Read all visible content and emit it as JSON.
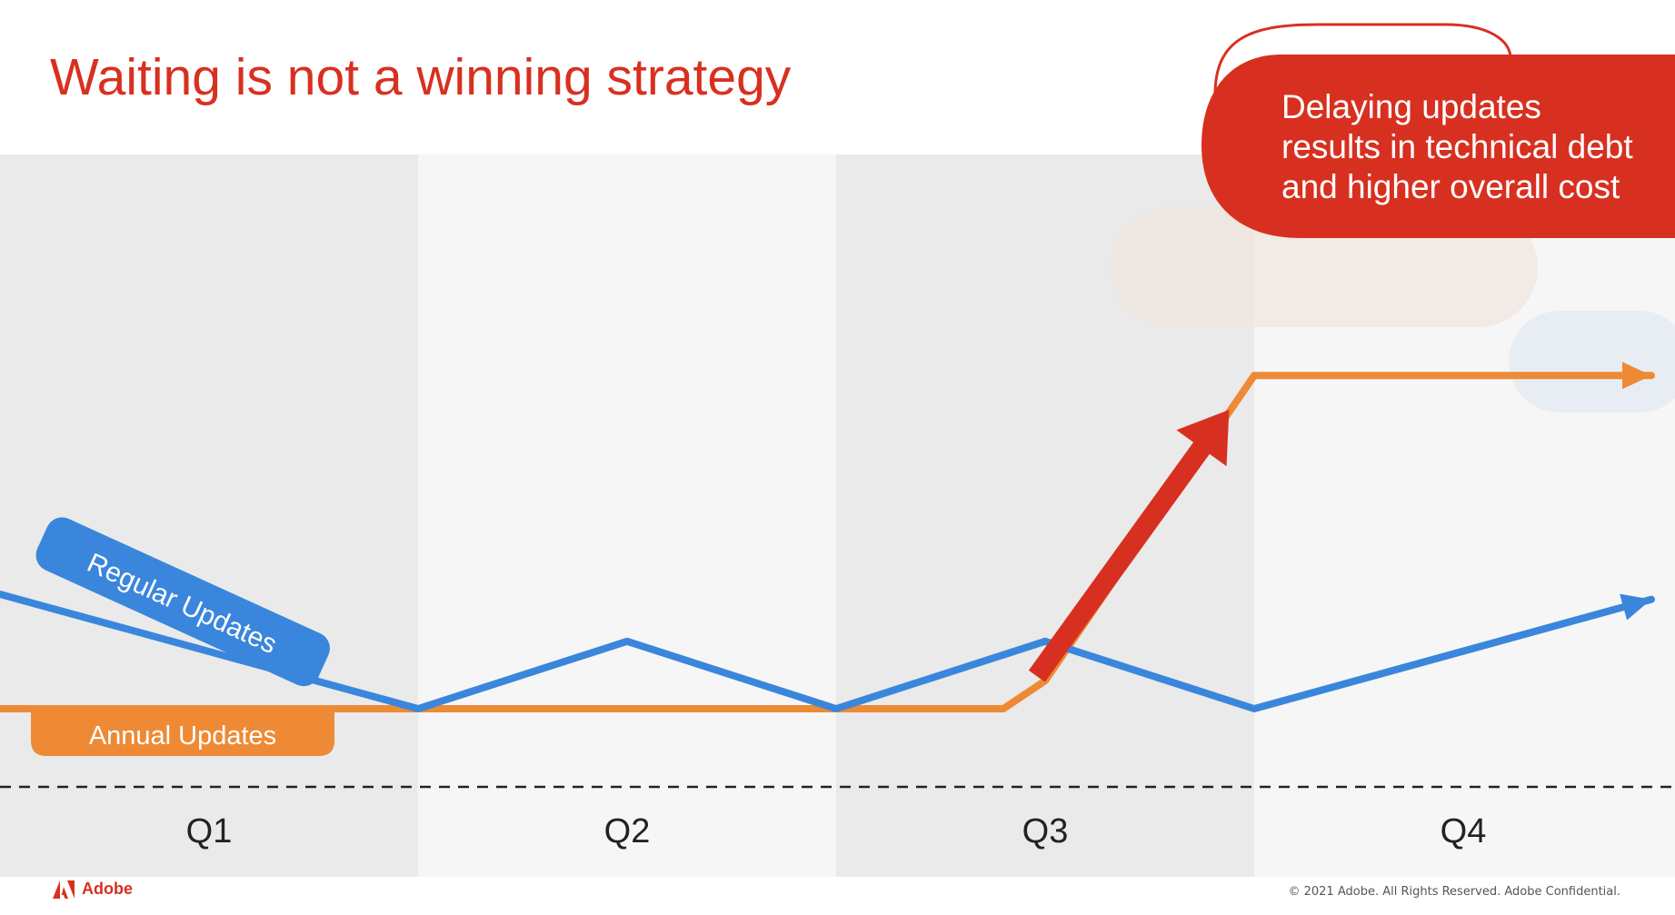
{
  "title": "Waiting is not a winning strategy",
  "callout": {
    "lines": [
      "Delaying updates",
      "results in technical debt",
      "and higher overall cost"
    ]
  },
  "chart_data": {
    "type": "line",
    "categories": [
      "Q1",
      "Q2",
      "Q3",
      "Q4"
    ],
    "series": [
      {
        "name": "Regular Updates",
        "color": "#3a86dc",
        "x": [
          0,
          1,
          1.5,
          2,
          2.5,
          3,
          3.95
        ],
        "y": [
          0.9,
          0,
          0.53,
          0,
          0.53,
          0,
          0.86
        ]
      },
      {
        "name": "Annual Updates",
        "color": "#ee8a35",
        "x": [
          0,
          2.4,
          2.5,
          2.5,
          3,
          3.95
        ],
        "y": [
          0,
          0,
          0.22,
          0.22,
          2.62,
          2.62
        ]
      }
    ],
    "colors": {
      "title": "#d83020",
      "callout": "#d83020",
      "arrow": "#d83020",
      "band_dark": "#eaeaea",
      "band_light": "#f6f6f6"
    },
    "icons": [
      "adobe-logo-icon"
    ]
  },
  "footer": {
    "brand": "Adobe",
    "copyright": "© 2021 Adobe. All Rights Reserved. Adobe Confidential."
  }
}
